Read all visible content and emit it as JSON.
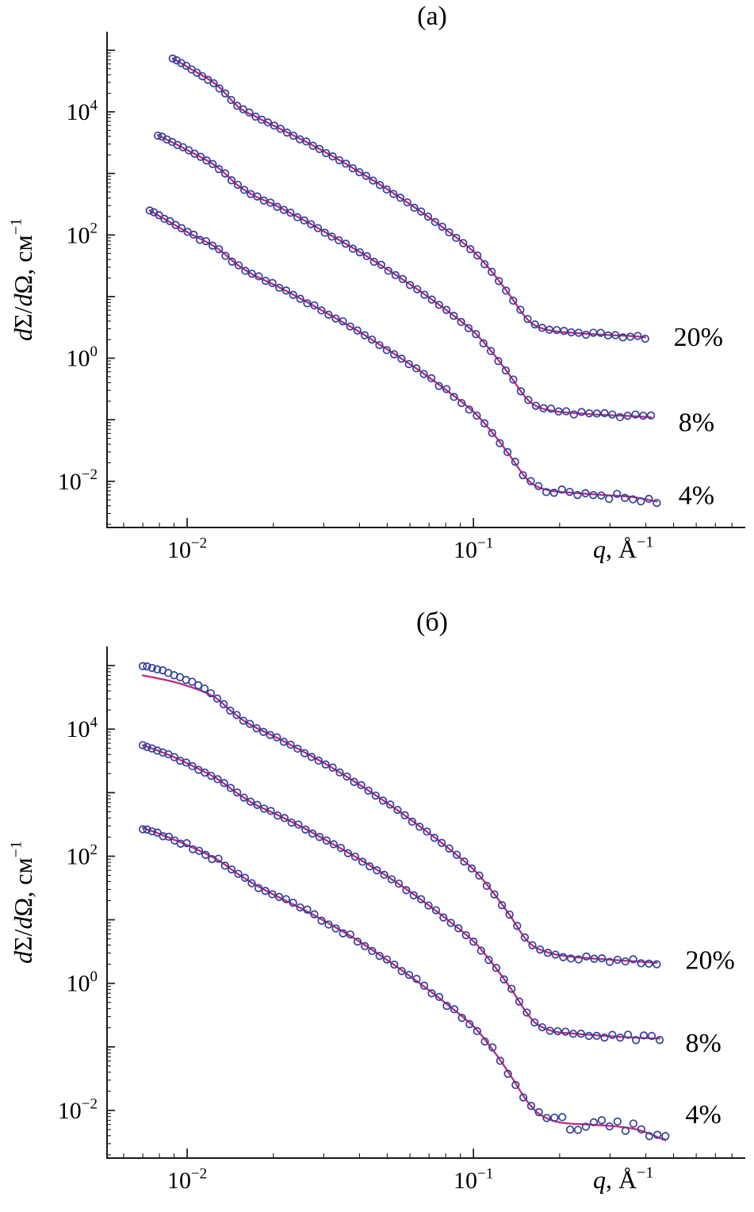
{
  "figure": {
    "background": "#ffffff",
    "axis_color": "#1a1a1a",
    "marker_color": "#33409c",
    "line_color": "#c2297c",
    "text_color": "#000000",
    "units": {
      "x": "Å⁻¹",
      "y": "см⁻¹"
    }
  },
  "chart_data": [
    {
      "type": "scatter",
      "title": "(а)",
      "xscale": "log",
      "yscale": "log",
      "xlim": [
        0.00525,
        0.89
      ],
      "ylim": [
        0.00178,
        200000
      ],
      "legend_position": "right-of-curves",
      "grid": false,
      "xlabel_parts": [
        {
          "t": "q",
          "italic": true
        },
        {
          "t": ", Å"
        },
        {
          "t": "−1",
          "sup": true
        }
      ],
      "ylabel_parts": [
        {
          "t": "d",
          "italic": true
        },
        {
          "t": "Σ"
        },
        {
          "t": "/"
        },
        {
          "t": "d",
          "italic": true
        },
        {
          "t": "Ω"
        },
        {
          "t": ", см"
        },
        {
          "t": "−1",
          "sup": true
        }
      ],
      "x_ticks": [
        {
          "v": 0.01,
          "base": "10",
          "exp": "−2"
        },
        {
          "v": 0.1,
          "base": "10",
          "exp": "−1"
        }
      ],
      "y_ticks": [
        {
          "v": 0.01,
          "base": "10",
          "exp": "−2"
        },
        {
          "v": 1,
          "base": "10",
          "exp": "0"
        },
        {
          "v": 100,
          "base": "10",
          "exp": "2"
        },
        {
          "v": 10000,
          "base": "10",
          "exp": "4"
        }
      ],
      "series": [
        {
          "name": "20%",
          "label": "20%",
          "label_at": [
            0.5,
            2.2
          ],
          "n_markers": 72,
          "scatter": 0.015,
          "points": [
            [
              0.0089,
              74000
            ],
            [
              0.0102,
              51000
            ],
            [
              0.0126,
              28000
            ],
            [
              0.0151,
              12000
            ],
            [
              0.0174,
              8300
            ],
            [
              0.02,
              6000
            ],
            [
              0.0251,
              3550
            ],
            [
              0.0316,
              2000
            ],
            [
              0.0398,
              1070
            ],
            [
              0.0501,
              550
            ],
            [
              0.0631,
              270
            ],
            [
              0.0794,
              126
            ],
            [
              0.1,
              54
            ],
            [
              0.117,
              24
            ],
            [
              0.135,
              10.0
            ],
            [
              0.151,
              4.8
            ],
            [
              0.166,
              3.3
            ],
            [
              0.191,
              2.75
            ],
            [
              0.224,
              2.57
            ],
            [
              0.282,
              2.4
            ],
            [
              0.355,
              2.29
            ],
            [
              0.398,
              2.19
            ]
          ]
        },
        {
          "name": "8%",
          "label": "8%",
          "label_at": [
            0.52,
            0.09
          ],
          "n_markers": 72,
          "scatter": 0.018,
          "points": [
            [
              0.0079,
              4200
            ],
            [
              0.01,
              2400
            ],
            [
              0.0126,
              1320
            ],
            [
              0.0151,
              630
            ],
            [
              0.0174,
              420
            ],
            [
              0.02,
              316
            ],
            [
              0.0251,
              182
            ],
            [
              0.0316,
              100
            ],
            [
              0.0398,
              54
            ],
            [
              0.0501,
              27.5
            ],
            [
              0.0631,
              13.5
            ],
            [
              0.0794,
              6.3
            ],
            [
              0.1,
              2.7
            ],
            [
              0.117,
              1.2
            ],
            [
              0.135,
              0.5
            ],
            [
              0.151,
              0.24
            ],
            [
              0.166,
              0.166
            ],
            [
              0.191,
              0.138
            ],
            [
              0.224,
              0.129
            ],
            [
              0.282,
              0.12
            ],
            [
              0.355,
              0.115
            ],
            [
              0.417,
              0.11
            ]
          ]
        },
        {
          "name": "4%",
          "label": "4%",
          "label_at": [
            0.52,
            0.0059
          ],
          "n_markers": 72,
          "scatter": 0.03,
          "points": [
            [
              0.0074,
              250
            ],
            [
              0.01,
              112
            ],
            [
              0.0126,
              63
            ],
            [
              0.0151,
              32
            ],
            [
              0.0174,
              21.4
            ],
            [
              0.02,
              15.8
            ],
            [
              0.0251,
              9.1
            ],
            [
              0.0316,
              5.0
            ],
            [
              0.0398,
              2.7
            ],
            [
              0.0501,
              1.38
            ],
            [
              0.0631,
              0.68
            ],
            [
              0.0794,
              0.316
            ],
            [
              0.1,
              0.135
            ],
            [
              0.117,
              0.06
            ],
            [
              0.135,
              0.025
            ],
            [
              0.151,
              0.012
            ],
            [
              0.166,
              0.0083
            ],
            [
              0.191,
              0.0069
            ],
            [
              0.224,
              0.0065
            ],
            [
              0.282,
              0.006
            ],
            [
              0.355,
              0.0056
            ],
            [
              0.437,
              0.0047
            ]
          ]
        }
      ]
    },
    {
      "type": "scatter",
      "title": "(б)",
      "xscale": "log",
      "yscale": "log",
      "xlim": [
        0.00525,
        0.89
      ],
      "ylim": [
        0.00178,
        200000
      ],
      "legend_position": "right-of-curves",
      "grid": false,
      "xlabel_parts": [
        {
          "t": "q",
          "italic": true
        },
        {
          "t": ", Å"
        },
        {
          "t": "−1",
          "sup": true
        }
      ],
      "ylabel_parts": [
        {
          "t": "d",
          "italic": true
        },
        {
          "t": "Σ"
        },
        {
          "t": "/"
        },
        {
          "t": "d",
          "italic": true
        },
        {
          "t": "Ω"
        },
        {
          "t": ", см"
        },
        {
          "t": "−1",
          "sup": true
        }
      ],
      "x_ticks": [
        {
          "v": 0.01,
          "base": "10",
          "exp": "−2"
        },
        {
          "v": 0.1,
          "base": "10",
          "exp": "−1"
        }
      ],
      "y_ticks": [
        {
          "v": 0.01,
          "base": "10",
          "exp": "−2"
        },
        {
          "v": 1,
          "base": "10",
          "exp": "0"
        },
        {
          "v": 100,
          "base": "10",
          "exp": "2"
        },
        {
          "v": 10000,
          "base": "10",
          "exp": "4"
        }
      ],
      "series": [
        {
          "name": "20%",
          "label": "20%",
          "label_at": [
            0.55,
            2.3
          ],
          "n_markers": 74,
          "scatter": 0.018,
          "points": [
            [
              0.007,
              100000
            ],
            [
              0.0079,
              87000
            ],
            [
              0.0089,
              74000
            ],
            [
              0.01,
              60000
            ],
            [
              0.0112,
              46000
            ],
            [
              0.0126,
              32000
            ],
            [
              0.0141,
              20000
            ],
            [
              0.0158,
              13500
            ],
            [
              0.0178,
              10000
            ],
            [
              0.02,
              7800
            ],
            [
              0.0251,
              4570
            ],
            [
              0.0316,
              2570
            ],
            [
              0.0398,
              1350
            ],
            [
              0.0501,
              680
            ],
            [
              0.0631,
              324
            ],
            [
              0.0794,
              148
            ],
            [
              0.1,
              62
            ],
            [
              0.117,
              27
            ],
            [
              0.135,
              11.2
            ],
            [
              0.151,
              5.2
            ],
            [
              0.166,
              3.6
            ],
            [
              0.191,
              2.9
            ],
            [
              0.224,
              2.6
            ],
            [
              0.282,
              2.4
            ],
            [
              0.355,
              2.24
            ],
            [
              0.437,
              2.1
            ]
          ],
          "line": [
            [
              0.007,
              70000
            ],
            [
              0.0079,
              63000
            ],
            [
              0.0089,
              56000
            ],
            [
              0.01,
              48000
            ],
            [
              0.0112,
              40000
            ],
            [
              0.0126,
              31000
            ],
            [
              0.0141,
              20000
            ],
            [
              0.0158,
              13500
            ],
            [
              0.0178,
              10000
            ],
            [
              0.02,
              7800
            ],
            [
              0.0251,
              4570
            ],
            [
              0.0316,
              2570
            ],
            [
              0.0398,
              1350
            ],
            [
              0.0501,
              680
            ],
            [
              0.0631,
              324
            ],
            [
              0.0794,
              148
            ],
            [
              0.1,
              62
            ],
            [
              0.117,
              27
            ],
            [
              0.135,
              11.2
            ],
            [
              0.151,
              5.2
            ],
            [
              0.166,
              3.6
            ],
            [
              0.191,
              2.9
            ],
            [
              0.224,
              2.6
            ],
            [
              0.282,
              2.4
            ],
            [
              0.355,
              2.24
            ],
            [
              0.437,
              2.1
            ]
          ]
        },
        {
          "name": "8%",
          "label": "8%",
          "label_at": [
            0.55,
            0.115
          ],
          "n_markers": 74,
          "scatter": 0.02,
          "points": [
            [
              0.007,
              5600
            ],
            [
              0.0079,
              4600
            ],
            [
              0.0089,
              3700
            ],
            [
              0.01,
              2900
            ],
            [
              0.0126,
              1700
            ],
            [
              0.0151,
              950
            ],
            [
              0.0174,
              640
            ],
            [
              0.02,
              480
            ],
            [
              0.0251,
              290
            ],
            [
              0.0316,
              164
            ],
            [
              0.0398,
              91
            ],
            [
              0.0501,
              48
            ],
            [
              0.0631,
              23.5
            ],
            [
              0.0794,
              10.8
            ],
            [
              0.1,
              4.6
            ],
            [
              0.117,
              2.0
            ],
            [
              0.135,
              0.83
            ],
            [
              0.151,
              0.38
            ],
            [
              0.166,
              0.23
            ],
            [
              0.191,
              0.175
            ],
            [
              0.224,
              0.162
            ],
            [
              0.282,
              0.15
            ],
            [
              0.355,
              0.141
            ],
            [
              0.447,
              0.135
            ]
          ]
        },
        {
          "name": "4%",
          "label": "4%",
          "label_at": [
            0.55,
            0.0087
          ],
          "n_markers": 74,
          "scatter": 0.05,
          "points": [
            [
              0.007,
              280
            ],
            [
              0.0079,
              230
            ],
            [
              0.0089,
              186
            ],
            [
              0.01,
              150
            ],
            [
              0.0126,
              91
            ],
            [
              0.0151,
              52
            ],
            [
              0.0174,
              35
            ],
            [
              0.02,
              25
            ],
            [
              0.0251,
              15
            ],
            [
              0.0316,
              8.5
            ],
            [
              0.0398,
              4.6
            ],
            [
              0.0501,
              2.3
            ],
            [
              0.0631,
              1.1
            ],
            [
              0.0794,
              0.5
            ],
            [
              0.1,
              0.21
            ],
            [
              0.117,
              0.089
            ],
            [
              0.135,
              0.035
            ],
            [
              0.151,
              0.0158
            ],
            [
              0.166,
              0.0095
            ],
            [
              0.186,
              0.0071
            ],
            [
              0.209,
              0.0063
            ],
            [
              0.251,
              0.006
            ],
            [
              0.316,
              0.0056
            ],
            [
              0.38,
              0.0053
            ],
            [
              0.468,
              0.0038
            ]
          ],
          "line": [
            [
              0.007,
              280
            ],
            [
              0.0079,
              230
            ],
            [
              0.0089,
              186
            ],
            [
              0.01,
              150
            ],
            [
              0.0126,
              91
            ],
            [
              0.0151,
              52
            ],
            [
              0.0174,
              35
            ],
            [
              0.02,
              25
            ],
            [
              0.0251,
              15
            ],
            [
              0.0316,
              8.5
            ],
            [
              0.0398,
              4.6
            ],
            [
              0.0501,
              2.3
            ],
            [
              0.0631,
              1.1
            ],
            [
              0.0794,
              0.5
            ],
            [
              0.1,
              0.21
            ],
            [
              0.117,
              0.089
            ],
            [
              0.135,
              0.035
            ],
            [
              0.151,
              0.0158
            ],
            [
              0.166,
              0.0095
            ],
            [
              0.186,
              0.0071
            ],
            [
              0.209,
              0.0063
            ],
            [
              0.251,
              0.006
            ],
            [
              0.316,
              0.0056
            ],
            [
              0.38,
              0.0049
            ],
            [
              0.468,
              0.0034
            ]
          ]
        }
      ]
    }
  ]
}
